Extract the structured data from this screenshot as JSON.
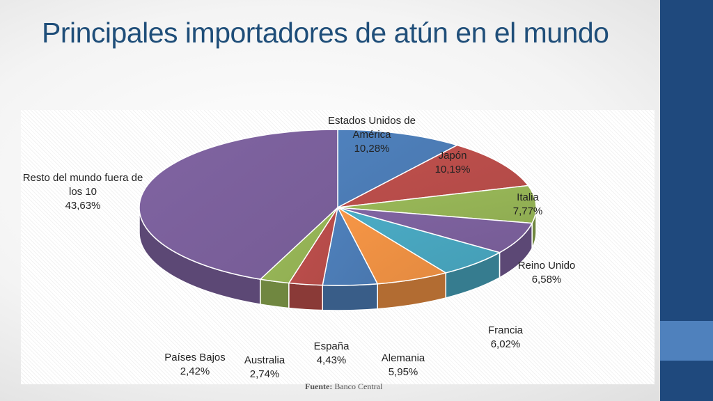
{
  "slide": {
    "title": "Principales importadores de atún en el mundo",
    "source_label": "Fuente:",
    "source_value": "Banco Central"
  },
  "colors": {
    "title": "#1f4e79",
    "sidebar": "#1f497d",
    "sidebar_accent": "#4f81bd"
  },
  "chart_data": {
    "type": "pie",
    "three_d": true,
    "title": "",
    "legend": "none",
    "slices": [
      {
        "label": "Estados Unidos de América",
        "value_label": "10,28%",
        "value": 10.28,
        "color": "#4f81bd"
      },
      {
        "label": "Japón",
        "value_label": "10,19%",
        "value": 10.19,
        "color": "#c0504d"
      },
      {
        "label": "Italia",
        "value_label": "7,77%",
        "value": 7.77,
        "color": "#9bbb59"
      },
      {
        "label": "Reino Unido",
        "value_label": "6,58%",
        "value": 6.58,
        "color": "#8064a2"
      },
      {
        "label": "Francia",
        "value_label": "6,02%",
        "value": 6.02,
        "color": "#4bacc6"
      },
      {
        "label": "Alemania",
        "value_label": "5,95%",
        "value": 5.95,
        "color": "#f79646"
      },
      {
        "label": "España",
        "value_label": "4,43%",
        "value": 4.43,
        "color": "#4f81bd"
      },
      {
        "label": "Australia",
        "value_label": "2,74%",
        "value": 2.74,
        "color": "#c0504d"
      },
      {
        "label": "Países Bajos",
        "value_label": "2,42%",
        "value": 2.42,
        "color": "#9bbb59"
      },
      {
        "label": "Resto del mundo fuera de los 10",
        "value_label": "43,63%",
        "value": 43.63,
        "color": "#8064a2"
      }
    ]
  }
}
